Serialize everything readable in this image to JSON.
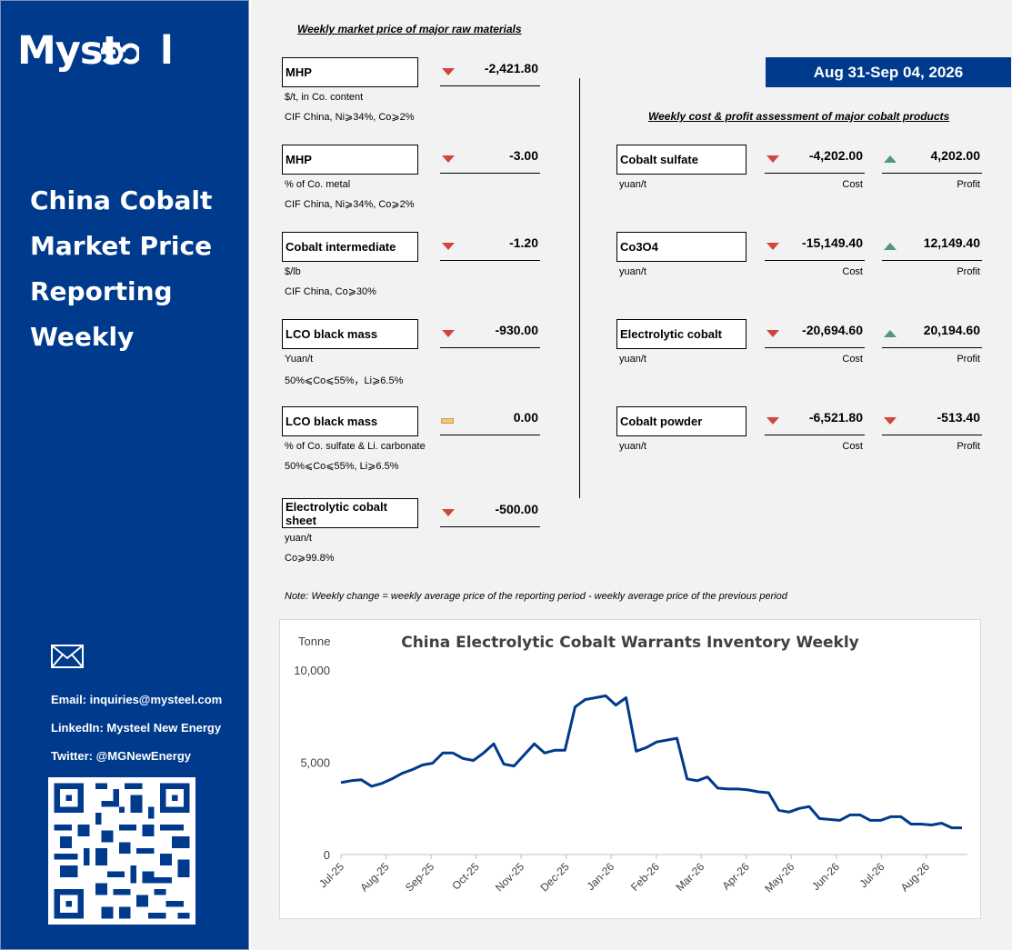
{
  "brand": {
    "logo_text": "Myst",
    "logo_tail": "l"
  },
  "sidebar": {
    "title_lines": [
      "China Cobalt",
      "Market Price",
      "Reporting",
      "Weekly"
    ],
    "email": "Email: inquiries@mysteel.com",
    "linkedin": "LinkedIn: Mysteel New Energy",
    "twitter": "Twitter: @MGNewEnergy"
  },
  "header": {
    "raw_heading": "Weekly market price of major raw materials",
    "date_start": "Aug 31",
    "date_sep": "-",
    "date_end": "Sep 04, 2026",
    "cost_heading": "Weekly cost & profit assessment of major cobalt products"
  },
  "raw_materials": [
    {
      "name": "MHP",
      "change": "-2,421.80",
      "direction": "down",
      "unit": "$/t, in Co. content",
      "spec": "CIF China, Ni⩾34%, Co⩾2%"
    },
    {
      "name": "MHP",
      "change": "-3.00",
      "direction": "down",
      "unit": "% of Co. metal",
      "spec": "CIF China, Ni⩾34%, Co⩾2%"
    },
    {
      "name": "Cobalt intermediate",
      "change": "-1.20",
      "direction": "down",
      "unit": "$/lb",
      "spec": "CIF China, Co⩾30%"
    },
    {
      "name": "LCO black mass",
      "change": "-930.00",
      "direction": "down",
      "unit": "Yuan/t",
      "spec": "50%⩽Co⩽55%，Li⩾6.5%"
    },
    {
      "name": "LCO black mass",
      "change": "0.00",
      "direction": "flat",
      "unit": "% of Co. sulfate & Li. carbonate",
      "spec": "50%⩽Co⩽55%, Li⩾6.5%"
    },
    {
      "name": "Electrolytic cobalt sheet",
      "change": "-500.00",
      "direction": "down",
      "unit": "yuan/t",
      "spec": "Co⩾99.8%"
    }
  ],
  "products": [
    {
      "name": "Cobalt sulfate",
      "unit": "yuan/t",
      "cost": "-4,202.00",
      "cost_dir": "down",
      "profit": "4,202.00",
      "profit_dir": "up"
    },
    {
      "name": "Co3O4",
      "unit": "yuan/t",
      "cost": "-15,149.40",
      "cost_dir": "down",
      "profit": "12,149.40",
      "profit_dir": "up"
    },
    {
      "name": "Electrolytic cobalt",
      "unit": "yuan/t",
      "cost": "-20,694.60",
      "cost_dir": "down",
      "profit": "20,194.60",
      "profit_dir": "up"
    },
    {
      "name": "Cobalt powder",
      "unit": "yuan/t",
      "cost": "-6,521.80",
      "cost_dir": "down",
      "profit": "-513.40",
      "profit_dir": "down"
    }
  ],
  "labels": {
    "cost": "Cost",
    "profit": "Profit"
  },
  "note": "Note: Weekly change = weekly average price of the reporting period - weekly average price of the previous period",
  "colors": {
    "sidebar": "#003a8c",
    "down": "#d0463a",
    "up": "#4f9a7c",
    "flat": "#f3c77a",
    "line": "#003a8c"
  },
  "chart_data": {
    "type": "line",
    "title": "China Electrolytic Cobalt Warrants Inventory Weekly",
    "ylabel": "Tonne",
    "ylim": [
      0,
      10000
    ],
    "yticks": [
      "10,000",
      "5,000",
      "0"
    ],
    "ytick_values": [
      10000,
      5000,
      0
    ],
    "xtick_labels": [
      "Jul-25",
      "Aug-25",
      "Sep-25",
      "Oct-25",
      "Nov-25",
      "Dec-25",
      "Jan-26",
      "Feb-26",
      "Mar-26",
      "Apr-26",
      "May-26",
      "Jun-26",
      "Jul-26",
      "Aug-26"
    ],
    "series": [
      {
        "values": [
          3900,
          4000,
          4050,
          3700,
          3850,
          4100,
          4400,
          4600,
          4850,
          4950,
          5500,
          5500,
          5200,
          5100,
          5500,
          6000,
          4900,
          4800,
          5400,
          6000,
          5500,
          5650,
          5650,
          8000,
          8400,
          8500,
          8600,
          8100,
          8500,
          5600,
          5800,
          6100,
          6200,
          6300,
          4100,
          4000,
          4200,
          3600,
          3550,
          3550,
          3500,
          3400,
          3350,
          2400,
          2300,
          2500,
          2600,
          1950,
          1900,
          1850,
          2150,
          2150,
          1850,
          1850,
          2050,
          2050,
          1650,
          1650,
          1600,
          1700,
          1450,
          1450
        ]
      }
    ],
    "grid": false,
    "legend": "none"
  }
}
